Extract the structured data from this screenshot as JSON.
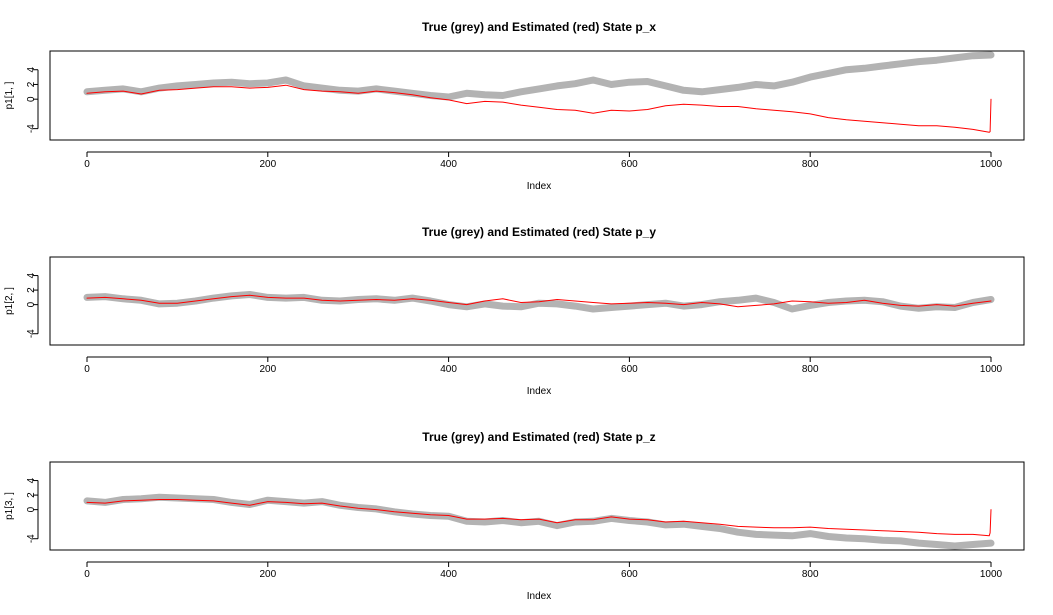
{
  "colors": {
    "truth": "#b3b3b3",
    "estimate": "#ff0000",
    "axis": "#000000",
    "background": "#ffffff"
  },
  "chart_data": [
    {
      "type": "line",
      "title": "True (grey) and Estimated (red) State p_x",
      "xlabel": "Index",
      "ylabel": "p1[1, ]",
      "xlim": [
        0,
        1000
      ],
      "ylim": [
        -5,
        6
      ],
      "xticks": [
        0,
        200,
        400,
        600,
        800,
        1000
      ],
      "yticks": [
        -4,
        0,
        2,
        4
      ],
      "grid": false,
      "series": [
        {
          "name": "True",
          "color": "#b3b3b3",
          "x": [
            0,
            20,
            40,
            60,
            80,
            100,
            120,
            140,
            160,
            180,
            200,
            220,
            240,
            260,
            280,
            300,
            320,
            340,
            360,
            380,
            400,
            420,
            440,
            460,
            480,
            500,
            520,
            540,
            560,
            580,
            600,
            620,
            640,
            660,
            680,
            700,
            720,
            740,
            760,
            780,
            800,
            820,
            840,
            860,
            880,
            900,
            920,
            940,
            960,
            980,
            1000
          ],
          "values": [
            1.0,
            1.2,
            1.4,
            1.0,
            1.5,
            1.8,
            2.0,
            2.2,
            2.3,
            2.1,
            2.2,
            2.6,
            1.8,
            1.5,
            1.2,
            1.1,
            1.4,
            1.1,
            0.8,
            0.5,
            0.3,
            0.8,
            0.6,
            0.5,
            1.0,
            1.4,
            1.8,
            2.1,
            2.6,
            2.0,
            2.3,
            2.4,
            1.8,
            1.2,
            1.0,
            1.3,
            1.6,
            2.0,
            1.8,
            2.3,
            3.0,
            3.5,
            4.0,
            4.2,
            4.5,
            4.8,
            5.1,
            5.3,
            5.6,
            5.9,
            6.0
          ]
        },
        {
          "name": "Estimated",
          "color": "#ff0000",
          "x": [
            0,
            20,
            40,
            60,
            80,
            100,
            120,
            140,
            160,
            180,
            200,
            220,
            240,
            260,
            280,
            300,
            320,
            340,
            360,
            380,
            400,
            420,
            440,
            460,
            480,
            500,
            520,
            540,
            560,
            580,
            600,
            620,
            640,
            660,
            680,
            700,
            720,
            740,
            760,
            780,
            800,
            820,
            840,
            860,
            880,
            900,
            920,
            940,
            960,
            980,
            998,
            999,
            1000
          ],
          "values": [
            0.8,
            1.0,
            1.1,
            0.7,
            1.2,
            1.3,
            1.5,
            1.7,
            1.7,
            1.5,
            1.6,
            1.9,
            1.3,
            1.1,
            1.0,
            0.8,
            1.1,
            0.9,
            0.6,
            0.2,
            -0.1,
            -0.6,
            -0.3,
            -0.4,
            -0.8,
            -1.1,
            -1.4,
            -1.5,
            -1.9,
            -1.5,
            -1.6,
            -1.4,
            -0.9,
            -0.7,
            -0.8,
            -1.0,
            -1.0,
            -1.3,
            -1.5,
            -1.7,
            -2.0,
            -2.5,
            -2.8,
            -3.0,
            -3.2,
            -3.4,
            -3.6,
            -3.6,
            -3.8,
            -4.1,
            -4.5,
            -4.4,
            0.0
          ]
        }
      ]
    },
    {
      "type": "line",
      "title": "True (grey) and Estimated (red) State p_y",
      "xlabel": "Index",
      "ylabel": "p1[2, ]",
      "xlim": [
        0,
        1000
      ],
      "ylim": [
        -5,
        6
      ],
      "xticks": [
        0,
        200,
        400,
        600,
        800,
        1000
      ],
      "yticks": [
        -4,
        0,
        2,
        4
      ],
      "grid": false,
      "series": [
        {
          "name": "True",
          "color": "#b3b3b3",
          "x": [
            0,
            20,
            40,
            60,
            80,
            100,
            120,
            140,
            160,
            180,
            200,
            220,
            240,
            260,
            280,
            300,
            320,
            340,
            360,
            380,
            400,
            420,
            440,
            460,
            480,
            500,
            520,
            540,
            560,
            580,
            600,
            620,
            640,
            660,
            680,
            700,
            720,
            740,
            760,
            780,
            800,
            820,
            840,
            860,
            880,
            900,
            920,
            940,
            960,
            980,
            1000
          ],
          "values": [
            1.0,
            1.1,
            0.8,
            0.6,
            0.1,
            0.2,
            0.5,
            0.9,
            1.2,
            1.4,
            1.0,
            0.9,
            1.0,
            0.6,
            0.5,
            0.7,
            0.8,
            0.6,
            0.9,
            0.5,
            0.0,
            -0.3,
            0.1,
            -0.2,
            -0.3,
            0.2,
            0.1,
            -0.2,
            -0.6,
            -0.4,
            -0.2,
            0.0,
            0.2,
            -0.2,
            0.0,
            0.4,
            0.6,
            0.9,
            0.3,
            -0.6,
            -0.1,
            0.3,
            0.5,
            0.6,
            0.4,
            -0.2,
            -0.5,
            -0.3,
            -0.4,
            0.3,
            0.7
          ]
        },
        {
          "name": "Estimated",
          "color": "#ff0000",
          "x": [
            0,
            20,
            40,
            60,
            80,
            100,
            120,
            140,
            160,
            180,
            200,
            220,
            240,
            260,
            280,
            300,
            320,
            340,
            360,
            380,
            400,
            420,
            440,
            460,
            480,
            500,
            520,
            540,
            560,
            580,
            600,
            620,
            640,
            660,
            680,
            700,
            720,
            740,
            760,
            780,
            800,
            820,
            840,
            860,
            880,
            900,
            920,
            940,
            960,
            980,
            1000
          ],
          "values": [
            0.9,
            1.0,
            0.8,
            0.6,
            0.2,
            0.2,
            0.5,
            0.8,
            1.1,
            1.3,
            1.0,
            0.9,
            0.9,
            0.6,
            0.5,
            0.6,
            0.7,
            0.6,
            0.8,
            0.6,
            0.3,
            0.0,
            0.5,
            0.8,
            0.3,
            0.4,
            0.7,
            0.5,
            0.3,
            0.1,
            0.2,
            0.3,
            0.2,
            0.0,
            0.3,
            0.1,
            -0.3,
            -0.1,
            0.1,
            0.5,
            0.4,
            0.2,
            0.3,
            0.6,
            0.2,
            -0.1,
            -0.2,
            0.0,
            -0.2,
            0.2,
            0.5
          ]
        }
      ]
    },
    {
      "type": "line",
      "title": "True (grey) and Estimated (red) State p_z",
      "xlabel": "Index",
      "ylabel": "p1[3, ]",
      "xlim": [
        0,
        1000
      ],
      "ylim": [
        -5,
        6
      ],
      "xticks": [
        0,
        200,
        400,
        600,
        800,
        1000
      ],
      "yticks": [
        -4,
        0,
        2,
        4
      ],
      "grid": false,
      "series": [
        {
          "name": "True",
          "color": "#b3b3b3",
          "x": [
            0,
            20,
            40,
            60,
            80,
            100,
            120,
            140,
            160,
            180,
            200,
            220,
            240,
            260,
            280,
            300,
            320,
            340,
            360,
            380,
            400,
            420,
            440,
            460,
            480,
            500,
            520,
            540,
            560,
            580,
            600,
            620,
            640,
            660,
            680,
            700,
            720,
            740,
            760,
            780,
            800,
            820,
            840,
            860,
            880,
            900,
            920,
            940,
            960,
            980,
            1000
          ],
          "values": [
            1.2,
            1.0,
            1.4,
            1.5,
            1.7,
            1.6,
            1.5,
            1.4,
            1.0,
            0.7,
            1.3,
            1.1,
            0.9,
            1.1,
            0.6,
            0.3,
            0.1,
            -0.3,
            -0.6,
            -0.8,
            -0.9,
            -1.6,
            -1.7,
            -1.5,
            -1.8,
            -1.6,
            -2.2,
            -1.7,
            -1.6,
            -1.2,
            -1.5,
            -1.7,
            -2.1,
            -2.0,
            -2.3,
            -2.6,
            -3.1,
            -3.4,
            -3.5,
            -3.6,
            -3.3,
            -3.7,
            -3.9,
            -4.0,
            -4.2,
            -4.3,
            -4.6,
            -4.8,
            -5.0,
            -4.8,
            -4.6
          ]
        },
        {
          "name": "Estimated",
          "color": "#ff0000",
          "x": [
            0,
            20,
            40,
            60,
            80,
            100,
            120,
            140,
            160,
            180,
            200,
            220,
            240,
            260,
            280,
            300,
            320,
            340,
            360,
            380,
            400,
            420,
            440,
            460,
            480,
            500,
            520,
            540,
            560,
            580,
            600,
            620,
            640,
            660,
            680,
            700,
            720,
            740,
            760,
            780,
            800,
            820,
            840,
            860,
            880,
            900,
            920,
            940,
            960,
            980,
            998,
            999,
            1000
          ],
          "values": [
            1.0,
            0.9,
            1.2,
            1.3,
            1.4,
            1.4,
            1.3,
            1.2,
            0.9,
            0.6,
            1.1,
            1.0,
            0.8,
            0.9,
            0.5,
            0.2,
            0.0,
            -0.3,
            -0.5,
            -0.7,
            -0.8,
            -1.3,
            -1.3,
            -1.2,
            -1.4,
            -1.3,
            -1.8,
            -1.4,
            -1.4,
            -1.0,
            -1.3,
            -1.4,
            -1.7,
            -1.6,
            -1.8,
            -2.0,
            -2.3,
            -2.4,
            -2.5,
            -2.5,
            -2.4,
            -2.6,
            -2.7,
            -2.8,
            -2.9,
            -3.0,
            -3.1,
            -3.3,
            -3.4,
            -3.4,
            -3.6,
            -3.2,
            0.0
          ]
        }
      ]
    }
  ]
}
